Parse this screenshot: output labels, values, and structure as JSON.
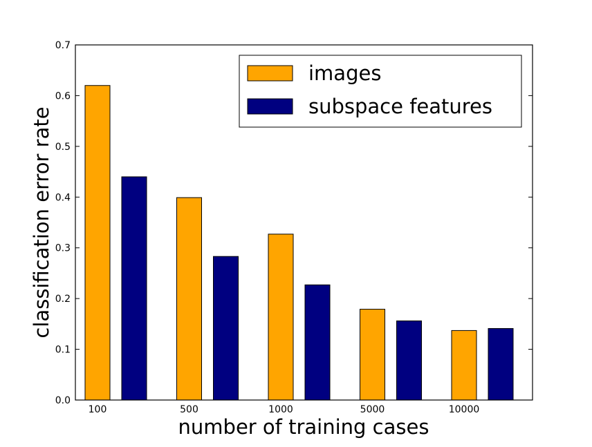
{
  "chart_data": {
    "type": "bar",
    "title": "",
    "xlabel": "number of training cases",
    "ylabel": "classification error rate",
    "categories": [
      "100",
      "500",
      "1000",
      "5000",
      "10000"
    ],
    "ylim": [
      0,
      0.7
    ],
    "yticks": [
      "0.0",
      "0.1",
      "0.2",
      "0.3",
      "0.4",
      "0.5",
      "0.6",
      "0.7"
    ],
    "grid": false,
    "legend_position": "top-right",
    "series": [
      {
        "name": "images",
        "color": "#FFA500",
        "values": [
          0.62,
          0.399,
          0.327,
          0.179,
          0.137
        ]
      },
      {
        "name": "subspace features",
        "color": "#000080",
        "values": [
          0.44,
          0.283,
          0.227,
          0.156,
          0.141
        ]
      }
    ]
  }
}
